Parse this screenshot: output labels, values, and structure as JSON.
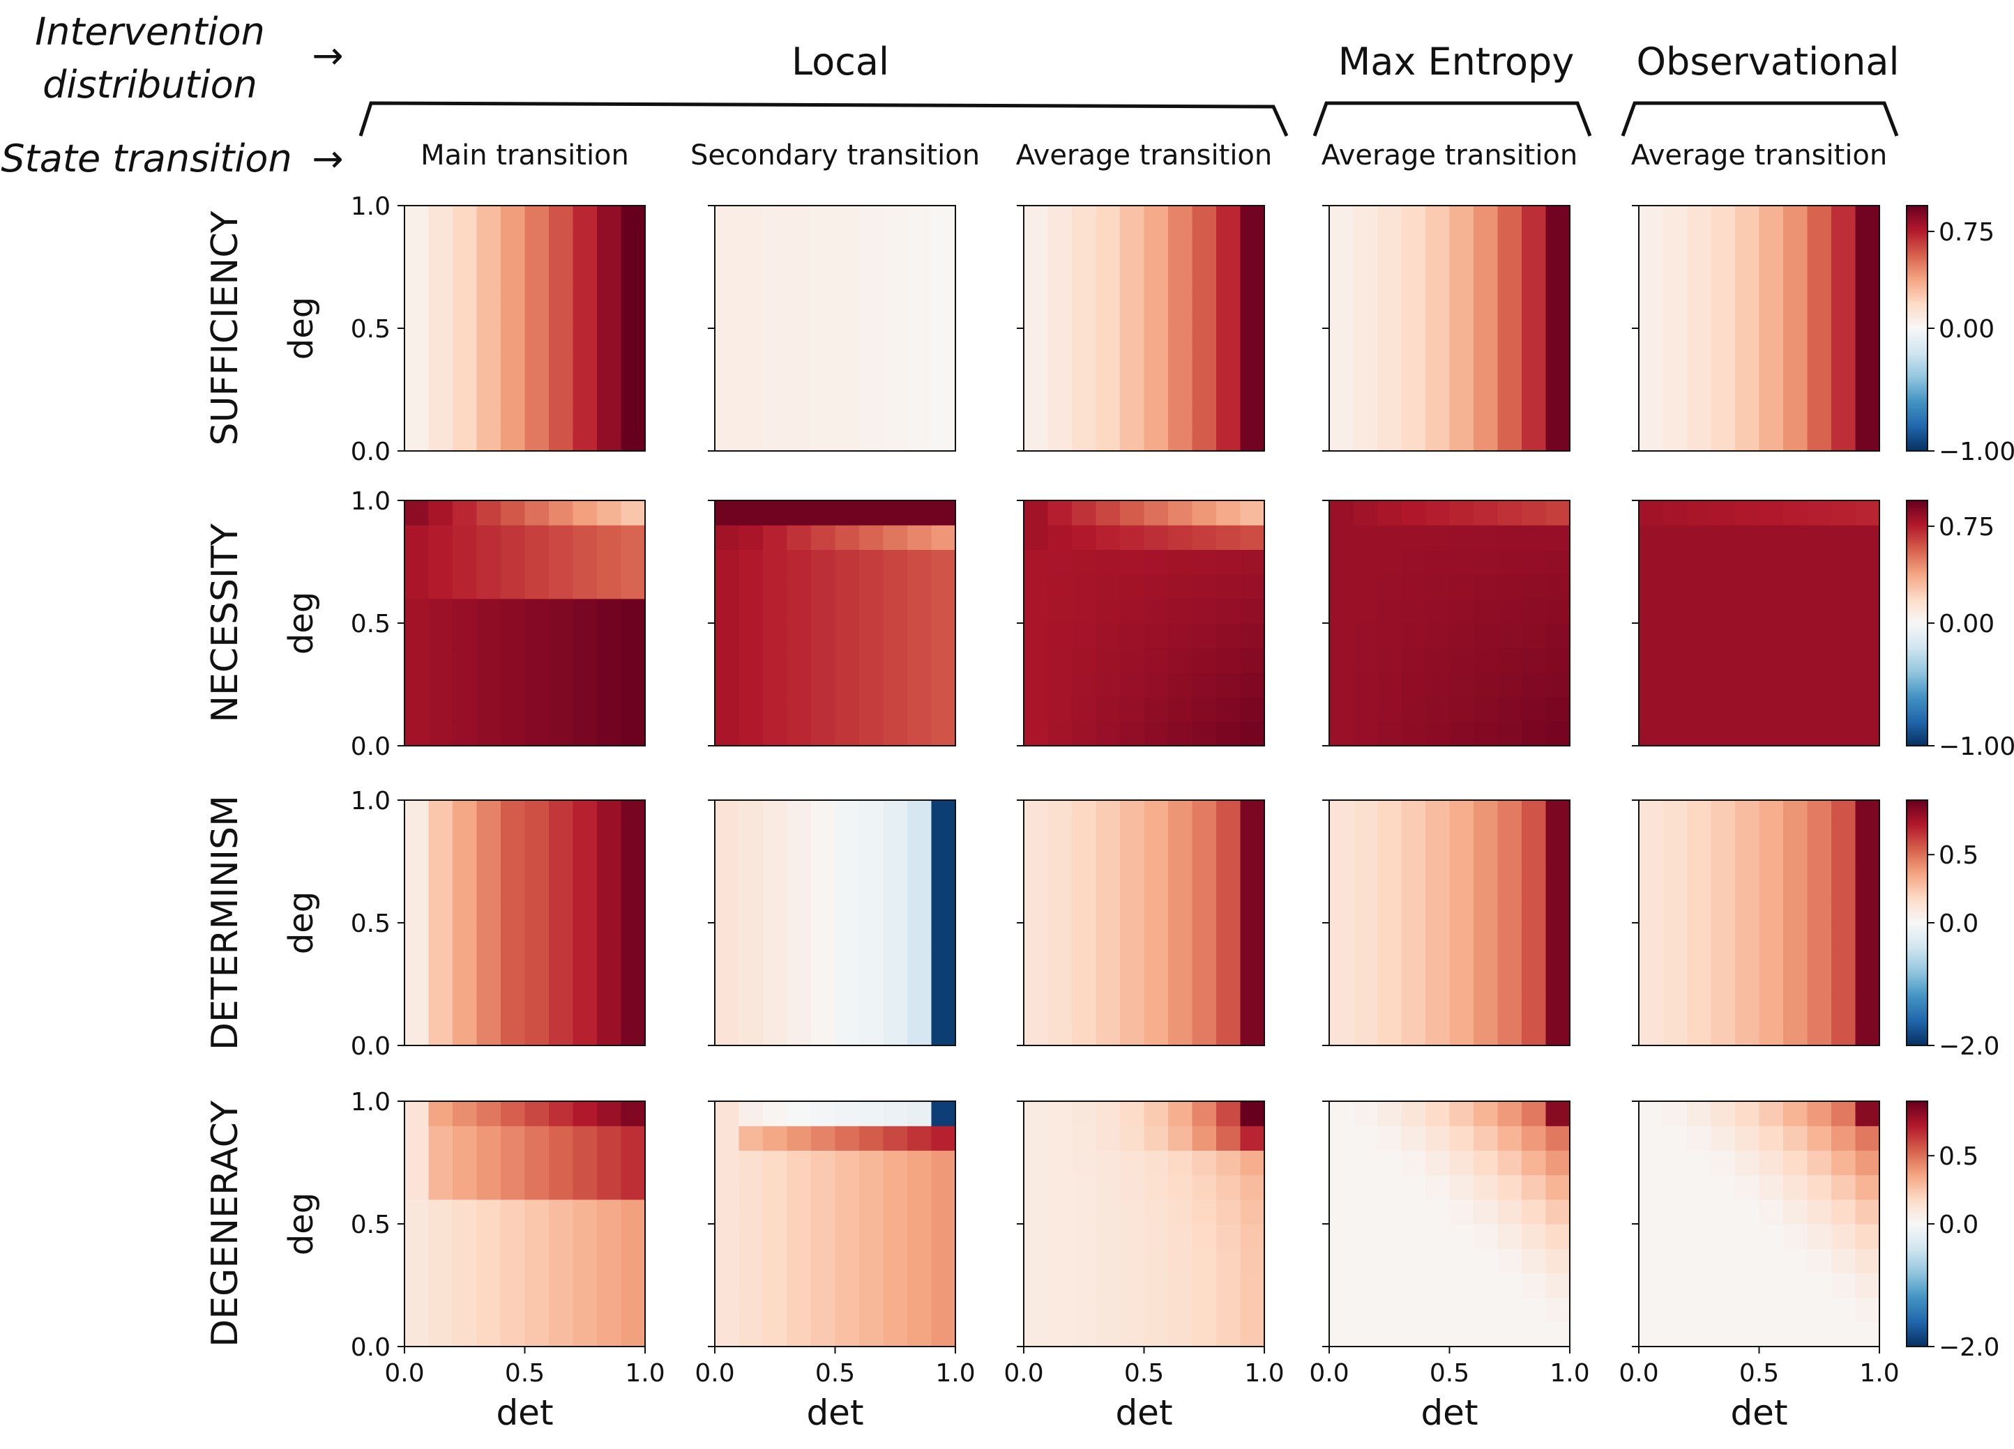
{
  "header": {
    "intervention_label": [
      "Intervention",
      "distribution"
    ],
    "state_label": "State transition",
    "arrow": "→",
    "groups": [
      "Local",
      "Max Entropy",
      "Observational"
    ]
  },
  "columns": [
    "Main transition",
    "Secondary transition",
    "Average transition",
    "Average transition",
    "Average transition"
  ],
  "rows": [
    "SUFFICIENCY",
    "NECESSITY",
    "DETERMINISM",
    "DEGENERACY"
  ],
  "axis": {
    "xlabel": "det",
    "ylabel": "deg",
    "xticks": [
      "0.0",
      "0.5",
      "1.0"
    ],
    "yticks": [
      "0.0",
      "0.5",
      "1.0"
    ],
    "range": [
      0,
      1
    ],
    "grid": "10x10 cells"
  },
  "colorbars": [
    {
      "ticks": [
        0.75,
        0.0,
        -1.0
      ],
      "labels": [
        "0.75",
        "0.00",
        "−1.00"
      ],
      "vmin": -1.0,
      "vmax": 0.95
    },
    {
      "ticks": [
        0.75,
        0.0,
        -1.0
      ],
      "labels": [
        "0.75",
        "0.00",
        "−1.00"
      ],
      "vmin": -1.0,
      "vmax": 0.95
    },
    {
      "ticks": [
        0.5,
        0.0,
        -2.0
      ],
      "labels": [
        "0.5",
        "0.0",
        "−2.0"
      ],
      "vmin": -2.0,
      "vmax": 0.9
    },
    {
      "ticks": [
        0.5,
        0.0,
        -2.0
      ],
      "labels": [
        "0.5",
        "0.0",
        "−2.0"
      ],
      "vmin": -2.0,
      "vmax": 0.9
    }
  ],
  "colormap": "RdBu_r",
  "chart_data": {
    "type": "heatmap",
    "title": "",
    "xlabel": "det",
    "ylabel": "deg",
    "x_range": [
      0,
      1
    ],
    "y_range": [
      0,
      1
    ],
    "grid_size": 10,
    "note": "Each panel value is estimated per cell (row, col); values in each row's colorbar scale.",
    "panels": [
      {
        "row": 0,
        "col": 0,
        "rule": "cols",
        "vals": [
          0.05,
          0.12,
          0.2,
          0.3,
          0.4,
          0.5,
          0.6,
          0.72,
          0.84,
          0.95
        ]
      },
      {
        "row": 0,
        "col": 1,
        "rule": "cols",
        "vals": [
          0.07,
          0.07,
          0.06,
          0.06,
          0.05,
          0.05,
          0.04,
          0.03,
          0.02,
          0.01
        ]
      },
      {
        "row": 0,
        "col": 2,
        "rule": "cols",
        "vals": [
          0.06,
          0.1,
          0.15,
          0.2,
          0.28,
          0.36,
          0.47,
          0.58,
          0.72,
          0.92
        ]
      },
      {
        "row": 0,
        "col": 3,
        "rule": "cols",
        "vals": [
          0.06,
          0.09,
          0.13,
          0.18,
          0.25,
          0.33,
          0.43,
          0.56,
          0.7,
          0.92
        ]
      },
      {
        "row": 0,
        "col": 4,
        "rule": "cols",
        "vals": [
          0.06,
          0.09,
          0.13,
          0.18,
          0.25,
          0.33,
          0.43,
          0.56,
          0.7,
          0.92
        ]
      },
      {
        "row": 1,
        "col": 0,
        "rule": "nec_main"
      },
      {
        "row": 1,
        "col": 1,
        "rule": "nec_sec"
      },
      {
        "row": 1,
        "col": 2,
        "rule": "nec_avg"
      },
      {
        "row": 1,
        "col": 3,
        "rule": "nec_me"
      },
      {
        "row": 1,
        "col": 4,
        "rule": "nec_obs"
      },
      {
        "row": 2,
        "col": 0,
        "rule": "cols",
        "vals": [
          0.08,
          0.25,
          0.35,
          0.45,
          0.55,
          0.58,
          0.64,
          0.7,
          0.78,
          0.86
        ]
      },
      {
        "row": 2,
        "col": 1,
        "rule": "cols",
        "vals": [
          0.12,
          0.1,
          0.08,
          0.05,
          0.02,
          -0.05,
          -0.1,
          -0.18,
          -0.35,
          -1.9
        ]
      },
      {
        "row": 2,
        "col": 2,
        "rule": "cols",
        "vals": [
          0.12,
          0.15,
          0.19,
          0.23,
          0.28,
          0.33,
          0.4,
          0.47,
          0.57,
          0.85
        ]
      },
      {
        "row": 2,
        "col": 3,
        "rule": "cols",
        "vals": [
          0.12,
          0.15,
          0.19,
          0.23,
          0.28,
          0.33,
          0.4,
          0.47,
          0.57,
          0.85
        ]
      },
      {
        "row": 2,
        "col": 4,
        "rule": "cols",
        "vals": [
          0.12,
          0.15,
          0.19,
          0.23,
          0.28,
          0.33,
          0.4,
          0.47,
          0.57,
          0.85
        ]
      },
      {
        "row": 3,
        "col": 0,
        "rule": "deg_main"
      },
      {
        "row": 3,
        "col": 1,
        "rule": "deg_sec"
      },
      {
        "row": 3,
        "col": 2,
        "rule": "deg_avg"
      },
      {
        "row": 3,
        "col": 3,
        "rule": "deg_me"
      },
      {
        "row": 3,
        "col": 4,
        "rule": "deg_obs"
      }
    ]
  }
}
